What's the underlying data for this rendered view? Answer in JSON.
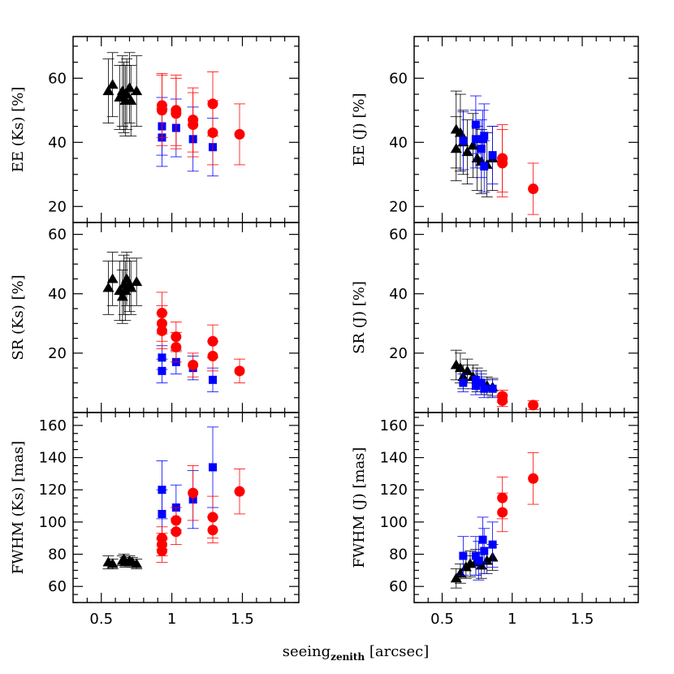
{
  "figure": {
    "xlabel_main": "seeing",
    "xlabel_sub": "zenith",
    "xlabel_unit": " [arcsec]"
  },
  "colors": {
    "star": "#000000",
    "lgs": "#0000ff",
    "ngs": "#ff0000"
  },
  "chart_data": [
    {
      "type": "scatter",
      "id": "ee-ks",
      "ylabel": "EE (Ks) [%]",
      "xlim": [
        0.3,
        1.9
      ],
      "ylim": [
        15,
        73
      ],
      "xticks": [
        "0.5",
        "1",
        "1.5"
      ],
      "yticks": [
        20,
        40,
        60
      ],
      "series": [
        {
          "color": "#000000",
          "marker": "triangle",
          "points": [
            [
              0.55,
              56,
              10
            ],
            [
              0.58,
              58,
              10
            ],
            [
              0.63,
              54,
              10
            ],
            [
              0.65,
              56,
              11
            ],
            [
              0.66,
              54,
              11
            ],
            [
              0.67,
              53,
              11
            ],
            [
              0.68,
              55,
              11
            ],
            [
              0.7,
              57,
              11
            ],
            [
              0.71,
              53,
              11
            ],
            [
              0.75,
              56,
              11
            ]
          ]
        },
        {
          "color": "#0000ff",
          "marker": "square",
          "points": [
            [
              0.93,
              45,
              9
            ],
            [
              0.93,
              41.5,
              9
            ],
            [
              1.03,
              44.5,
              9
            ],
            [
              1.15,
              41,
              10
            ],
            [
              1.29,
              38.5,
              9
            ]
          ]
        },
        {
          "color": "#ff0000",
          "marker": "circle",
          "points": [
            [
              0.93,
              51.5,
              10
            ],
            [
              0.93,
              50,
              11
            ],
            [
              1.03,
              50,
              11
            ],
            [
              1.03,
              49,
              11
            ],
            [
              1.15,
              47,
              10
            ],
            [
              1.15,
              45.5,
              10
            ],
            [
              1.29,
              52,
              10
            ],
            [
              1.29,
              43,
              10
            ],
            [
              1.48,
              42.5,
              9.5
            ]
          ]
        }
      ]
    },
    {
      "type": "scatter",
      "id": "ee-j",
      "ylabel": "EE (J) [%]",
      "xlim": [
        0.3,
        1.9
      ],
      "ylim": [
        15,
        73
      ],
      "xticks": [
        "0.5",
        "1",
        "1.5"
      ],
      "yticks": [
        20,
        40,
        60
      ],
      "series": [
        {
          "color": "#000000",
          "marker": "triangle",
          "points": [
            [
              0.6,
              44,
              12
            ],
            [
              0.6,
              38,
              10
            ],
            [
              0.63,
              43,
              12
            ],
            [
              0.65,
              40,
              10
            ],
            [
              0.68,
              37,
              10
            ],
            [
              0.72,
              39,
              10
            ],
            [
              0.75,
              35,
              10
            ],
            [
              0.78,
              34,
              10
            ],
            [
              0.82,
              33,
              10
            ],
            [
              0.86,
              35,
              10
            ]
          ]
        },
        {
          "color": "#0000ff",
          "marker": "square",
          "points": [
            [
              0.65,
              40.5,
              9
            ],
            [
              0.74,
              45.5,
              9
            ],
            [
              0.74,
              41,
              9
            ],
            [
              0.78,
              38,
              9
            ],
            [
              0.79,
              41,
              9
            ],
            [
              0.8,
              32.5,
              8
            ],
            [
              0.8,
              42,
              10
            ],
            [
              0.86,
              36,
              9
            ]
          ]
        },
        {
          "color": "#ff0000",
          "marker": "circle",
          "points": [
            [
              0.93,
              35,
              10.5
            ],
            [
              0.93,
              33.5,
              10.5
            ],
            [
              1.15,
              25.5,
              8
            ]
          ]
        }
      ]
    },
    {
      "type": "scatter",
      "id": "sr-ks",
      "ylabel": "SR (Ks) [%]",
      "xlim": [
        0.3,
        1.9
      ],
      "ylim": [
        0,
        64
      ],
      "xticks": [
        "0.5",
        "1",
        "1.5"
      ],
      "yticks": [
        20,
        40,
        60
      ],
      "series": [
        {
          "color": "#000000",
          "marker": "triangle",
          "points": [
            [
              0.55,
              42,
              9
            ],
            [
              0.58,
              45,
              9
            ],
            [
              0.63,
              41,
              10
            ],
            [
              0.65,
              39,
              9
            ],
            [
              0.66,
              43,
              10
            ],
            [
              0.67,
              41,
              10
            ],
            [
              0.68,
              45,
              9
            ],
            [
              0.7,
              43,
              9
            ],
            [
              0.71,
              42,
              9
            ],
            [
              0.75,
              44,
              8
            ]
          ]
        },
        {
          "color": "#0000ff",
          "marker": "square",
          "points": [
            [
              0.93,
              18.5,
              4
            ],
            [
              0.93,
              14,
              4
            ],
            [
              1.03,
              17,
              4
            ],
            [
              1.15,
              15,
              4
            ],
            [
              1.29,
              11,
              4
            ]
          ]
        },
        {
          "color": "#ff0000",
          "marker": "circle",
          "points": [
            [
              0.93,
              33.5,
              7
            ],
            [
              0.93,
              30,
              6
            ],
            [
              0.93,
              27.5,
              6
            ],
            [
              1.03,
              25.5,
              5
            ],
            [
              1.03,
              22,
              5
            ],
            [
              1.15,
              16,
              4
            ],
            [
              1.29,
              24,
              5.5
            ],
            [
              1.29,
              19,
              5
            ],
            [
              1.48,
              14,
              4
            ]
          ]
        }
      ]
    },
    {
      "type": "scatter",
      "id": "sr-j",
      "ylabel": "SR (J) [%]",
      "xlim": [
        0.3,
        1.9
      ],
      "ylim": [
        0,
        64
      ],
      "xticks": [
        "0.5",
        "1",
        "1.5"
      ],
      "yticks": [
        20,
        40,
        60
      ],
      "series": [
        {
          "color": "#000000",
          "marker": "triangle",
          "points": [
            [
              0.6,
              16,
              5
            ],
            [
              0.63,
              15,
              5
            ],
            [
              0.65,
              12,
              4
            ],
            [
              0.68,
              14,
              4
            ],
            [
              0.72,
              12,
              4
            ],
            [
              0.75,
              11,
              4
            ],
            [
              0.78,
              10,
              4
            ],
            [
              0.82,
              9,
              3
            ],
            [
              0.86,
              8.5,
              3
            ]
          ]
        },
        {
          "color": "#0000ff",
          "marker": "square",
          "points": [
            [
              0.65,
              10,
              3
            ],
            [
              0.74,
              11,
              3
            ],
            [
              0.74,
              9,
              3
            ],
            [
              0.78,
              10,
              3
            ],
            [
              0.8,
              8,
              3
            ],
            [
              0.86,
              8,
              3
            ]
          ]
        },
        {
          "color": "#ff0000",
          "marker": "circle",
          "points": [
            [
              0.93,
              5.5,
              2
            ],
            [
              0.93,
              4,
              2
            ],
            [
              1.15,
              2.5,
              1.5
            ]
          ]
        }
      ]
    },
    {
      "type": "scatter",
      "id": "fwhm-ks",
      "ylabel": "FWHM (Ks) [mas]",
      "xlim": [
        0.3,
        1.9
      ],
      "ylim": [
        50,
        168
      ],
      "xticks": [
        "0.5",
        "1",
        "1.5"
      ],
      "yticks": [
        60,
        80,
        100,
        120,
        140,
        160
      ],
      "series": [
        {
          "color": "#000000",
          "marker": "triangle",
          "points": [
            [
              0.55,
              75,
              4
            ],
            [
              0.58,
              74,
              3
            ],
            [
              0.65,
              76,
              3
            ],
            [
              0.66,
              77,
              3
            ],
            [
              0.67,
              75,
              3
            ],
            [
              0.7,
              76,
              3
            ],
            [
              0.72,
              75,
              3
            ],
            [
              0.75,
              74,
              3
            ]
          ]
        },
        {
          "color": "#0000ff",
          "marker": "square",
          "points": [
            [
              0.93,
              120,
              18
            ],
            [
              0.93,
              105,
              15
            ],
            [
              1.03,
              109,
              14
            ],
            [
              1.15,
              114,
              18
            ],
            [
              1.29,
              134,
              25
            ]
          ]
        },
        {
          "color": "#ff0000",
          "marker": "circle",
          "points": [
            [
              0.93,
              90,
              7
            ],
            [
              0.93,
              86,
              7
            ],
            [
              0.93,
              82,
              7
            ],
            [
              1.03,
              101,
              8
            ],
            [
              1.03,
              94,
              8
            ],
            [
              1.15,
              118,
              17
            ],
            [
              1.29,
              103,
              13
            ],
            [
              1.29,
              95,
              8
            ],
            [
              1.48,
              119,
              14
            ]
          ]
        }
      ]
    },
    {
      "type": "scatter",
      "id": "fwhm-j",
      "ylabel": "FWHM (J) [mas]",
      "xlim": [
        0.3,
        1.9
      ],
      "ylim": [
        50,
        168
      ],
      "xticks": [
        "0.5",
        "1",
        "1.5"
      ],
      "yticks": [
        60,
        80,
        100,
        120,
        140,
        160
      ],
      "series": [
        {
          "color": "#000000",
          "marker": "triangle",
          "points": [
            [
              0.6,
              65,
              6
            ],
            [
              0.63,
              68,
              6
            ],
            [
              0.67,
              72,
              7
            ],
            [
              0.7,
              74,
              8
            ],
            [
              0.74,
              75,
              8
            ],
            [
              0.78,
              73,
              8
            ],
            [
              0.82,
              76,
              8
            ],
            [
              0.86,
              78,
              8
            ]
          ]
        },
        {
          "color": "#0000ff",
          "marker": "square",
          "points": [
            [
              0.65,
              79,
              12
            ],
            [
              0.74,
              79,
              12
            ],
            [
              0.76,
              76,
              12
            ],
            [
              0.79,
              89,
              14
            ],
            [
              0.8,
              82,
              14
            ],
            [
              0.86,
              86,
              14
            ]
          ]
        },
        {
          "color": "#ff0000",
          "marker": "circle",
          "points": [
            [
              0.93,
              115,
              13
            ],
            [
              0.93,
              106,
              12
            ],
            [
              1.15,
              127,
              16
            ]
          ]
        }
      ]
    }
  ]
}
